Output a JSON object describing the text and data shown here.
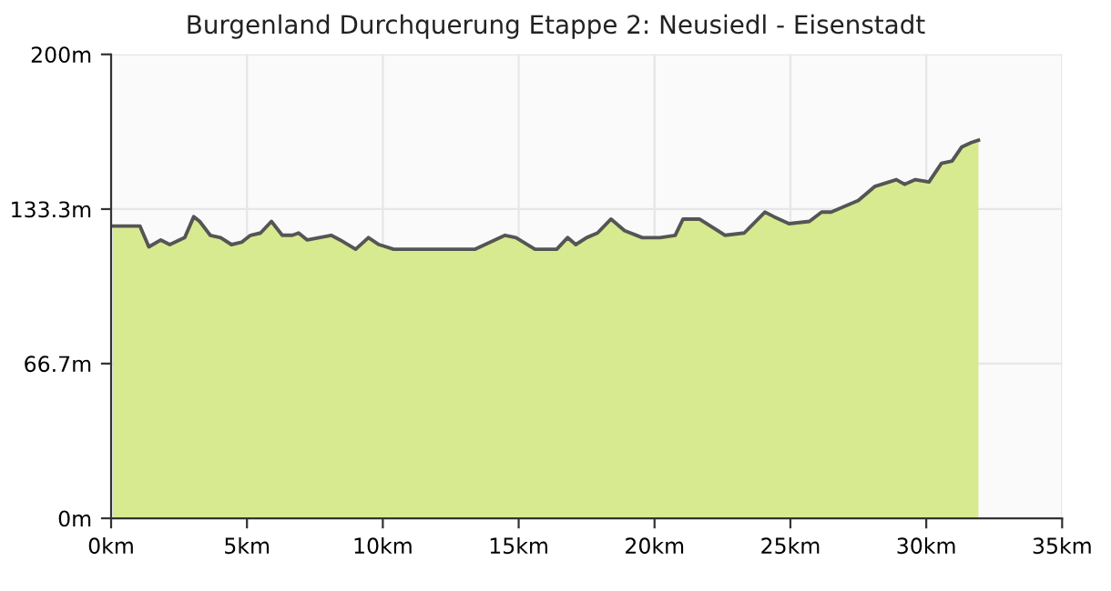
{
  "chart_data": {
    "type": "area",
    "title": "Burgenland Durchquerung Etappe 2: Neusiedl - Eisenstadt",
    "x": [
      0.07,
      1.06,
      1.39,
      1.83,
      2.16,
      2.71,
      3.04,
      3.26,
      3.65,
      4.03,
      4.43,
      4.8,
      5.13,
      5.5,
      5.9,
      6.3,
      6.67,
      6.9,
      7.22,
      8.1,
      8.43,
      9.0,
      9.47,
      9.86,
      10.4,
      12.3,
      13.4,
      14.5,
      14.9,
      15.6,
      16.4,
      16.8,
      17.1,
      17.5,
      17.9,
      18.4,
      18.9,
      19.55,
      20.2,
      20.76,
      21.05,
      21.65,
      22.6,
      23.3,
      24.06,
      24.4,
      24.95,
      25.7,
      26.15,
      26.5,
      27.5,
      28.1,
      28.9,
      29.2,
      29.6,
      30.1,
      30.56,
      30.95,
      31.3,
      31.66,
      31.92
    ],
    "series": [
      {
        "color": "#d7ea8f",
        "values": [
          126,
          126,
          117,
          120,
          118,
          121,
          130,
          128,
          122,
          121,
          118,
          119,
          122,
          123,
          128,
          122,
          122,
          123,
          120,
          122,
          120,
          116,
          121,
          118,
          116,
          116,
          116,
          122,
          121,
          116,
          116,
          121,
          118,
          121,
          123,
          129,
          124,
          121,
          121,
          122,
          129,
          129,
          122,
          123,
          132,
          130,
          127,
          128,
          132,
          132,
          137,
          143,
          146,
          144,
          146,
          145,
          153,
          154,
          160,
          162,
          163
        ]
      }
    ],
    "xlim": [
      0,
      35
    ],
    "ylim": [
      0,
      200
    ],
    "xticks": [
      {
        "value": 0,
        "label": "0km"
      },
      {
        "value": 5,
        "label": "5km"
      },
      {
        "value": 10,
        "label": "10km"
      },
      {
        "value": 15,
        "label": "15km"
      },
      {
        "value": 20,
        "label": "20km"
      },
      {
        "value": 25,
        "label": "25km"
      },
      {
        "value": 30,
        "label": "30km"
      },
      {
        "value": 35,
        "label": "35km"
      }
    ],
    "yticks": [
      {
        "value": 0,
        "label": "0m"
      },
      {
        "value": 66.7,
        "label": "66.7m"
      },
      {
        "value": 133.3,
        "label": "133.3m"
      },
      {
        "value": 200,
        "label": "200m"
      }
    ],
    "grid": true,
    "legend": false
  }
}
